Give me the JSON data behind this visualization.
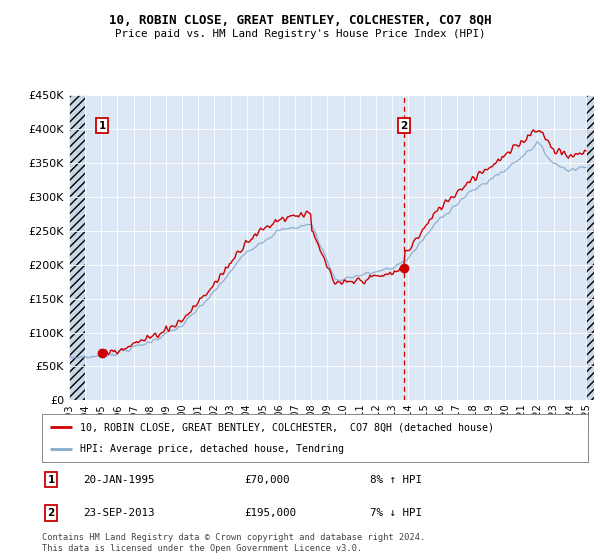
{
  "title": "10, ROBIN CLOSE, GREAT BENTLEY, COLCHESTER, CO7 8QH",
  "subtitle": "Price paid vs. HM Land Registry's House Price Index (HPI)",
  "ylim": [
    0,
    450000
  ],
  "yticks": [
    0,
    50000,
    100000,
    150000,
    200000,
    250000,
    300000,
    350000,
    400000,
    450000
  ],
  "ytick_labels": [
    "£0",
    "£50K",
    "£100K",
    "£150K",
    "£200K",
    "£250K",
    "£300K",
    "£350K",
    "£400K",
    "£450K"
  ],
  "xlim_start": 1993.0,
  "xlim_end": 2025.5,
  "sale1_date": 1995.05,
  "sale1_price": 70000,
  "sale2_date": 2013.73,
  "sale2_price": 195000,
  "legend_line1": "10, ROBIN CLOSE, GREAT BENTLEY, COLCHESTER,  CO7 8QH (detached house)",
  "legend_line2": "HPI: Average price, detached house, Tendring",
  "annotation1_label": "1",
  "annotation1_date": "20-JAN-1995",
  "annotation1_price": "£70,000",
  "annotation1_hpi": "8% ↑ HPI",
  "annotation2_label": "2",
  "annotation2_date": "23-SEP-2013",
  "annotation2_price": "£195,000",
  "annotation2_hpi": "7% ↓ HPI",
  "footer": "Contains HM Land Registry data © Crown copyright and database right 2024.\nThis data is licensed under the Open Government Licence v3.0.",
  "hatch_color": "#c8d8e8",
  "plot_bg": "#dce8f5",
  "red_line_color": "#cc0000",
  "blue_line_color": "#88aacc",
  "marker_color": "#cc0000",
  "dashed_line_color": "#cc0000",
  "box_color": "#cc0000",
  "grid_color": "#ffffff"
}
